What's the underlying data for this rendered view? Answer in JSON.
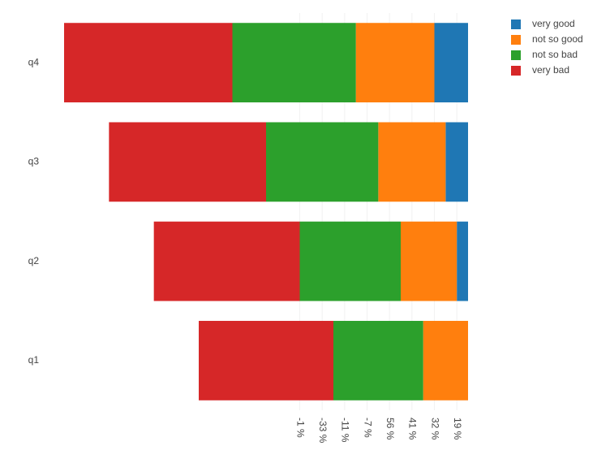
{
  "chart_data": {
    "type": "bar",
    "orientation": "horizontal",
    "stacked": true,
    "categories": [
      "q1",
      "q2",
      "q3",
      "q4"
    ],
    "series": [
      {
        "name": "very good",
        "color": "#1f77b4",
        "values": [
          0,
          -0.5,
          -1,
          -1.5
        ]
      },
      {
        "name": "not so good",
        "color": "#ff7f0e",
        "values": [
          -2,
          -2.5,
          -3,
          -3.5
        ]
      },
      {
        "name": "not so bad",
        "color": "#2ca02c",
        "values": [
          -4,
          -4.5,
          -5,
          -5.5
        ]
      },
      {
        "name": "very bad",
        "color": "#d62728",
        "values": [
          -6,
          -6.5,
          -7,
          -7.5
        ]
      }
    ],
    "xlim": [
      -18,
      0
    ],
    "xticks": [
      {
        "value": -7.5,
        "label": "-1 %"
      },
      {
        "value": -6.5,
        "label": "-33 %"
      },
      {
        "value": -5.5,
        "label": "-11 %"
      },
      {
        "value": -4.5,
        "label": "-7 %"
      },
      {
        "value": -3.5,
        "label": "56 %"
      },
      {
        "value": -2.5,
        "label": "41 %"
      },
      {
        "value": -1.5,
        "label": "32 %"
      },
      {
        "value": -0.5,
        "label": "19 %"
      }
    ],
    "grid": true,
    "legend": "top-right"
  }
}
